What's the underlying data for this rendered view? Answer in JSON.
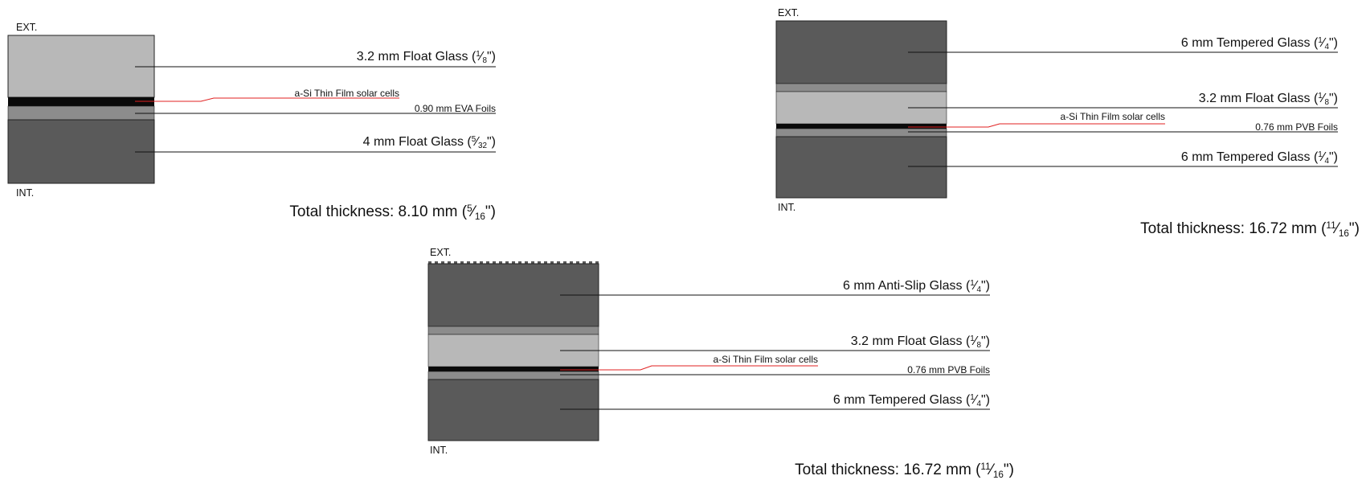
{
  "panels": [
    {
      "id": "panel-1",
      "ext_label": "EXT.",
      "int_label": "INT.",
      "layers": {
        "top_glass": "3.2 mm Float Glass (",
        "top_glass_frac_num": "1",
        "top_glass_frac_den": "8",
        "top_glass_end": "\")",
        "cells": "a-Si Thin Film solar cells",
        "foil": "0.90 mm EVA Foils",
        "bottom_glass": "4 mm Float Glass (",
        "bottom_glass_frac_num": "5",
        "bottom_glass_frac_den": "32",
        "bottom_glass_end": "\")"
      },
      "total": {
        "prefix": "Total thickness: 8.10 mm (",
        "frac_num": "5",
        "frac_den": "16",
        "suffix": "\")"
      }
    },
    {
      "id": "panel-2",
      "ext_label": "EXT.",
      "int_label": "INT.",
      "layers": {
        "top_glass": "6 mm Tempered Glass (",
        "top_glass_frac_num": "1",
        "top_glass_frac_den": "4",
        "top_glass_end": "\")",
        "mid_glass": "3.2 mm Float Glass (",
        "mid_glass_frac_num": "1",
        "mid_glass_frac_den": "8",
        "mid_glass_end": "\")",
        "cells": "a-Si Thin Film solar cells",
        "foil": "0.76 mm PVB Foils",
        "bottom_glass": "6 mm Tempered Glass (",
        "bottom_glass_frac_num": "1",
        "bottom_glass_frac_den": "4",
        "bottom_glass_end": "\")"
      },
      "total": {
        "prefix": "Total thickness: 16.72 mm (",
        "frac_num": "11",
        "frac_den": "16",
        "suffix": "\")"
      }
    },
    {
      "id": "panel-3",
      "ext_label": "EXT.",
      "int_label": "INT.",
      "layers": {
        "top_glass": "6 mm Anti-Slip Glass (",
        "top_glass_frac_num": "1",
        "top_glass_frac_den": "4",
        "top_glass_end": "\")",
        "mid_glass": "3.2 mm Float Glass (",
        "mid_glass_frac_num": "1",
        "mid_glass_frac_den": "8",
        "mid_glass_end": "\")",
        "cells": "a-Si Thin Film solar cells",
        "foil": "0.76 mm PVB Foils",
        "bottom_glass": "6 mm Tempered Glass (",
        "bottom_glass_frac_num": "1",
        "bottom_glass_frac_den": "4",
        "bottom_glass_end": "\")"
      },
      "total": {
        "prefix": "Total thickness: 16.72 mm (",
        "frac_num": "11",
        "frac_den": "16",
        "suffix": "\")"
      }
    }
  ],
  "colors": {
    "dark_glass": "#5a5a5a",
    "light_glass": "#b8b8b8",
    "foil": "#8c8c8c",
    "cells": "#0a0a0a",
    "leader": "#111111",
    "cell_leader": "#e02020"
  }
}
